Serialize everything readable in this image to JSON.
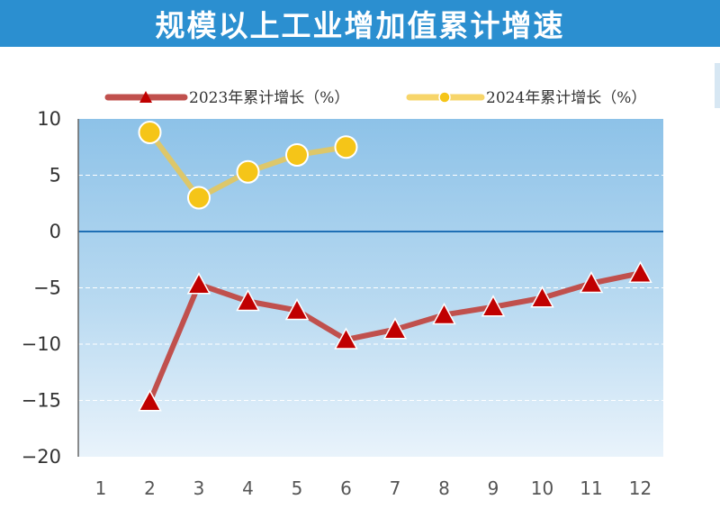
{
  "title": "规模以上工业增加值累计增速",
  "chart_data": {
    "type": "line",
    "categories": [
      "1",
      "2",
      "3",
      "4",
      "5",
      "6",
      "7",
      "8",
      "9",
      "10",
      "11",
      "12"
    ],
    "yticks": [
      "10",
      "5",
      "0",
      "−5",
      "−10",
      "−15",
      "−20"
    ],
    "ylim": [
      -20,
      10
    ],
    "grid": true,
    "legend_position": "top",
    "series": [
      {
        "name": "2023年累计增长（%）",
        "color": "#c0504d",
        "marker": "triangle",
        "values": [
          null,
          -15.1,
          -4.7,
          -6.2,
          -7.0,
          -9.6,
          -8.7,
          -7.4,
          -6.7,
          -5.9,
          -4.6,
          -3.7
        ]
      },
      {
        "name": "2024年累计增长（%）",
        "color": "#f5c518",
        "marker": "circle",
        "values": [
          null,
          8.8,
          3.0,
          5.3,
          6.8,
          7.5,
          null,
          null,
          null,
          null,
          null,
          null
        ]
      }
    ]
  }
}
